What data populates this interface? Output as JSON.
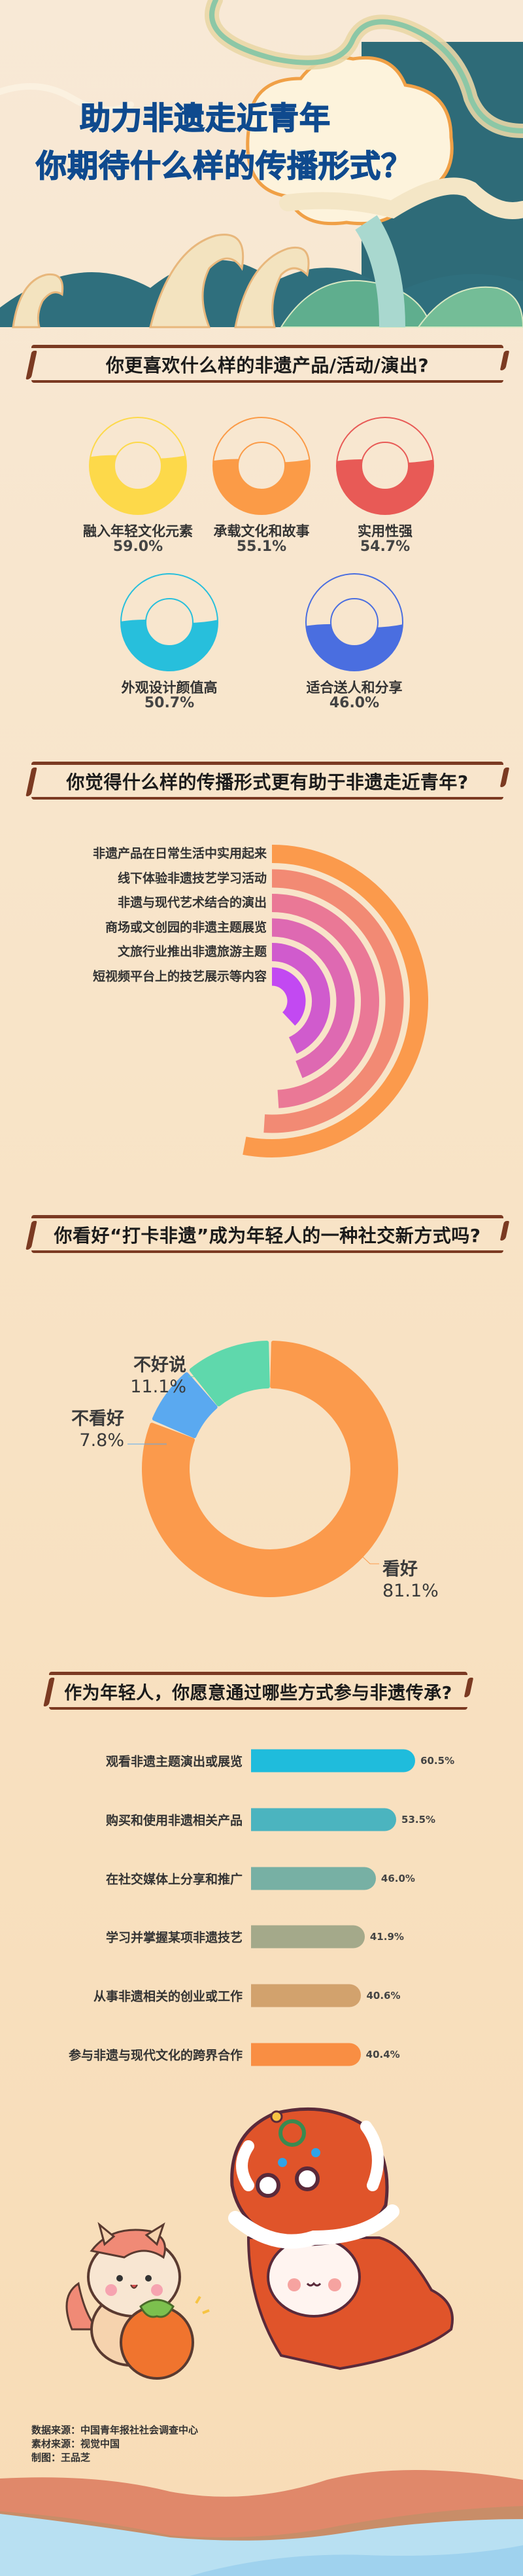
{
  "header": {
    "title_line1": "助力非遗走近青年",
    "title_line2": "你期待什么样的传播形式？",
    "colors": {
      "title": "#0f4a8e",
      "teal_panel": "#2e6b78",
      "moon": "#fdf3dc"
    }
  },
  "chart_data": [
    {
      "type": "pie",
      "style": "ring-fill",
      "title": "你更喜欢什么样的非遗产品/活动/演出?",
      "categories": [
        "融入年轻文化元素",
        "承载文化和故事",
        "实用性强",
        "外观设计颜值高",
        "适合送人和分享"
      ],
      "values": [
        59.0,
        55.1,
        54.7,
        50.7,
        46.0
      ],
      "labels": [
        "59.0%",
        "55.1%",
        "54.7%",
        "50.7%",
        "46.0%"
      ],
      "colors": [
        "#fdd94a",
        "#fb9b47",
        "#e85a56",
        "#27bfdc",
        "#4a6ee0"
      ]
    },
    {
      "type": "bar",
      "style": "radial",
      "title": "你觉得什么样的传播形式更有助于非遗走近青年?",
      "categories": [
        "非遗产品在日常生活中实用起来",
        "线下体验非遗技艺学习活动",
        "非遗与现代艺术结合的演出",
        "商场或文创园的非遗主题展览",
        "文旅行业推出非遗旅游主题",
        "短视频平台上的技艺展示等内容"
      ],
      "values_fraction_of_circle": [
        0.53,
        0.51,
        0.49,
        0.44,
        0.43,
        0.38
      ],
      "colors": [
        "#fb9a4c",
        "#f28a74",
        "#ea7896",
        "#de69b2",
        "#d05bcd",
        "#c249f2"
      ]
    },
    {
      "type": "pie",
      "style": "donut",
      "title": "你看好“打卡非遗”成为年轻人的一种社交新方式吗?",
      "categories": [
        "看好",
        "不看好",
        "不好说"
      ],
      "values": [
        81.1,
        7.8,
        11.1
      ],
      "labels": [
        "81.1%",
        "7.8%",
        "11.1%"
      ],
      "colors": [
        "#fb9a4c",
        "#5aa9f0",
        "#5fd8ac"
      ]
    },
    {
      "type": "bar",
      "orientation": "horizontal",
      "title": "作为年轻人，你愿意通过哪些方式参与非遗传承?",
      "categories": [
        "观看非遗主题演出或展览",
        "购买和使用非遗相关产品",
        "在社交媒体上分享和推广",
        "学习并掌握某项非遗技艺",
        "从事非遗相关的创业或工作",
        "参与非遗与现代文化的跨界合作"
      ],
      "values": [
        60.5,
        53.5,
        46.0,
        41.9,
        40.6,
        40.4
      ],
      "labels": [
        "60.5%",
        "53.5%",
        "46.0%",
        "41.9%",
        "40.6%",
        "40.4%"
      ],
      "colors": [
        "#1fbcdc",
        "#4bb4bf",
        "#77b0a4",
        "#a4a98a",
        "#d2a26d",
        "#f98e43"
      ]
    }
  ],
  "footer": {
    "data_source": "数据来源：中国青年报社社会调查中心",
    "material_source": "素材来源：视觉中国",
    "design": "制图：王品芝"
  }
}
